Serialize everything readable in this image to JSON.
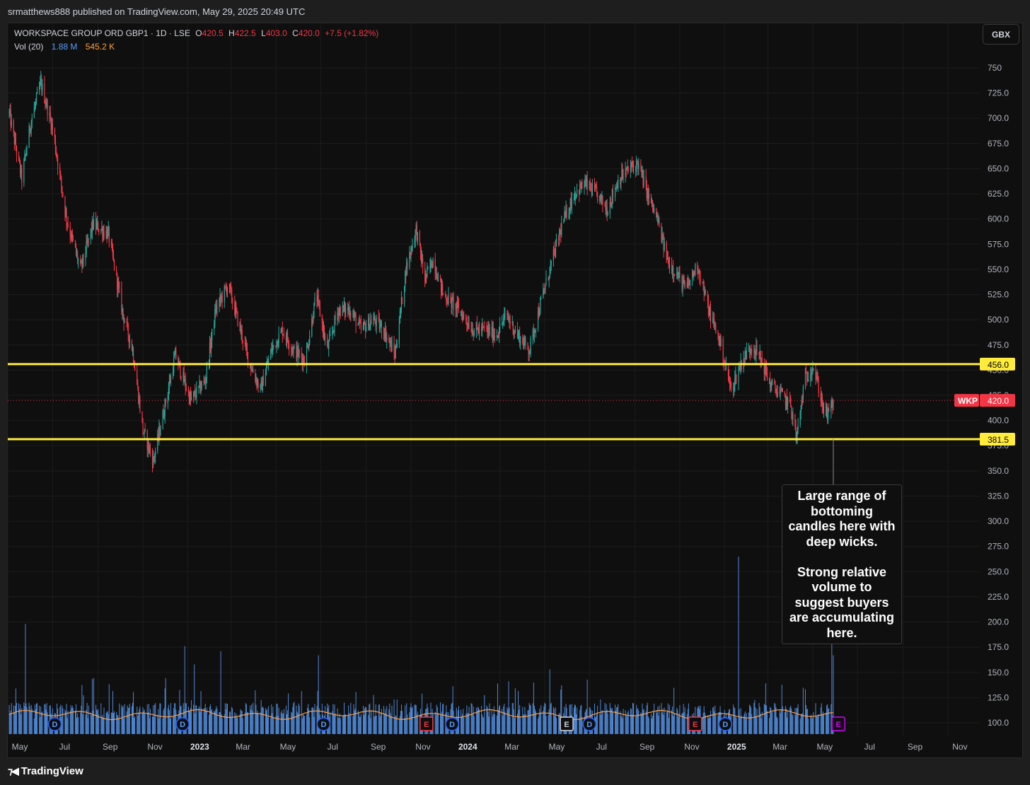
{
  "header": {
    "attribution": "srmatthews888 published on TradingView.com, May 29, 2025 20:49 UTC"
  },
  "legend": {
    "title": "WORKSPACE GROUP ORD GBP1 · 1D · LSE",
    "open_label": "O",
    "open": "420.5",
    "high_label": "H",
    "high": "422.5",
    "low_label": "L",
    "low": "403.0",
    "close_label": "C",
    "close": "420.0",
    "change": "+7.5 (+1.82%)",
    "volume_label": "Vol (20)",
    "volume": "1.88 M",
    "volume_ma": "545.2 K"
  },
  "currency_button": "GBX",
  "annotation": {
    "text": "Large range of\nbottoming\ncandles here with\ndeep wicks.\n\nStrong relative\nvolume to\nsuggest buyers\nare accumulating\nhere."
  },
  "footer": {
    "brand": "TradingView"
  },
  "colors": {
    "up": "#26a69a",
    "down": "#f23645",
    "level_line": "#ffeb3b",
    "volume": "#5b9cf6",
    "volume_ma": "#ff9f43",
    "background": "#0f0f0f"
  },
  "chart_data": {
    "type": "candlestick",
    "symbol": "WKP",
    "interval": "1D",
    "y_axis": {
      "ylim": [
        87,
        762
      ],
      "ticks": [
        100,
        125,
        150,
        175,
        200,
        225,
        250,
        275,
        300,
        325,
        350,
        375,
        400,
        425,
        450,
        475,
        500,
        525,
        550,
        575,
        600,
        625,
        650,
        675,
        700,
        725,
        750
      ],
      "tick_labels": [
        "100.0",
        "125.0",
        "150.0",
        "175.0",
        "200.0",
        "225.0",
        "250.0",
        "275.0",
        "300.0",
        "325.0",
        "350.0",
        "375.0",
        "400.0",
        "425.0",
        "450.0",
        "475.0",
        "500.0",
        "525.0",
        "550.0",
        "575.0",
        "600.0",
        "625.0",
        "650.0",
        "675.0",
        "700.0",
        "725.0",
        "750"
      ]
    },
    "x_axis": {
      "tick_labels": [
        "May",
        "Jul",
        "Sep",
        "Nov",
        "2023",
        "Mar",
        "May",
        "Jul",
        "Sep",
        "Nov",
        "2024",
        "Mar",
        "May",
        "Jul",
        "Sep",
        "Nov",
        "2025",
        "Mar",
        "May",
        "Jul",
        "Sep",
        "Nov"
      ],
      "bold_labels": [
        "2023",
        "2024",
        "2025"
      ],
      "start_date": "2022-05-01",
      "end_date": "2025-11-30",
      "last_bar_date": "2025-05-29"
    },
    "price_path": {
      "dates": [
        "2022-05-03",
        "2022-05-20",
        "2022-06-01",
        "2022-06-15",
        "2022-07-01",
        "2022-07-20",
        "2022-08-08",
        "2022-08-25",
        "2022-09-15",
        "2022-10-05",
        "2022-10-18",
        "2022-11-01",
        "2022-11-15",
        "2022-12-01",
        "2022-12-15",
        "2023-01-05",
        "2023-01-25",
        "2023-02-08",
        "2023-02-25",
        "2023-03-10",
        "2023-03-25",
        "2023-04-10",
        "2023-04-25",
        "2023-05-10",
        "2023-05-25",
        "2023-06-10",
        "2023-06-25",
        "2023-07-10",
        "2023-07-25",
        "2023-08-10",
        "2023-08-25",
        "2023-09-10",
        "2023-09-25",
        "2023-10-10",
        "2023-10-25",
        "2023-11-08",
        "2023-11-20",
        "2023-12-01",
        "2023-12-15",
        "2024-01-05",
        "2024-01-25",
        "2024-02-10",
        "2024-02-25",
        "2024-03-10",
        "2024-03-25",
        "2024-04-10",
        "2024-04-25",
        "2024-05-10",
        "2024-05-25",
        "2024-06-10",
        "2024-06-25",
        "2024-07-10",
        "2024-07-25",
        "2024-08-10",
        "2024-08-25",
        "2024-09-05",
        "2024-09-18",
        "2024-10-01",
        "2024-10-15",
        "2024-10-28",
        "2024-11-10",
        "2024-11-25",
        "2024-12-10",
        "2024-12-25",
        "2025-01-10",
        "2025-01-25",
        "2025-02-08",
        "2025-02-20",
        "2025-03-05",
        "2025-03-20",
        "2025-04-01",
        "2025-04-09",
        "2025-04-20",
        "2025-05-01",
        "2025-05-10",
        "2025-05-16",
        "2025-05-22",
        "2025-05-29"
      ],
      "values": [
        705,
        640,
        695,
        735,
        690,
        600,
        550,
        595,
        585,
        505,
        470,
        390,
        360,
        415,
        465,
        420,
        440,
        510,
        535,
        500,
        460,
        430,
        470,
        490,
        470,
        460,
        525,
        470,
        510,
        510,
        490,
        500,
        490,
        465,
        550,
        590,
        540,
        560,
        525,
        510,
        490,
        490,
        485,
        505,
        485,
        470,
        515,
        555,
        595,
        625,
        635,
        625,
        610,
        640,
        650,
        655,
        625,
        600,
        560,
        545,
        530,
        555,
        510,
        480,
        430,
        460,
        475,
        460,
        435,
        425,
        415,
        382,
        440,
        455,
        430,
        410,
        405,
        420
      ]
    },
    "horizontal_levels": [
      {
        "value": 456.0,
        "label": "456.0"
      },
      {
        "value": 381.5,
        "label": "381.5"
      }
    ],
    "last_price": {
      "value": 420.0,
      "label": "420.0",
      "symbol_label": "WKP"
    },
    "volume": {
      "spikes": [
        {
          "date": "2022-05-25",
          "value": 198
        },
        {
          "date": "2022-12-28",
          "value": 176
        },
        {
          "date": "2023-01-10",
          "value": 158
        },
        {
          "date": "2023-02-15",
          "value": 171
        },
        {
          "date": "2023-06-28",
          "value": 167
        },
        {
          "date": "2023-07-15",
          "value": 157
        },
        {
          "date": "2024-05-08",
          "value": 153
        },
        {
          "date": "2024-12-28",
          "value": 145
        },
        {
          "date": "2025-01-20",
          "value": 265
        },
        {
          "date": "2025-05-27",
          "value": 189
        },
        {
          "date": "2025-05-29",
          "value": 167
        }
      ],
      "base": 100
    },
    "events": [
      {
        "date": "2022-07-04",
        "type": "D"
      },
      {
        "date": "2022-12-25",
        "type": "D"
      },
      {
        "date": "2023-07-05",
        "type": "D"
      },
      {
        "date": "2023-11-22",
        "type": "E"
      },
      {
        "date": "2023-12-27",
        "type": "D"
      },
      {
        "date": "2024-05-31",
        "type": "E"
      },
      {
        "date": "2024-07-01",
        "type": "D"
      },
      {
        "date": "2024-11-22",
        "type": "E"
      },
      {
        "date": "2025-01-02",
        "type": "D"
      },
      {
        "date": "2025-06-05",
        "type": "E"
      }
    ]
  }
}
